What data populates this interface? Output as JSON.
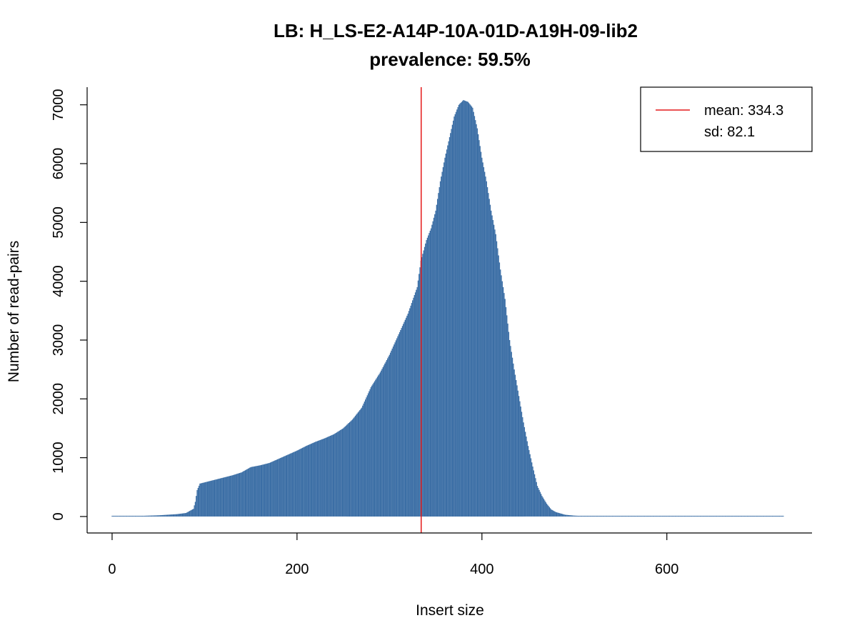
{
  "chart_data": {
    "type": "bar",
    "title": "LB: H_LS-E2-A14P-10A-01D-A19H-09-lib2",
    "subtitle": "prevalence: 59.5%",
    "xlabel": "Insert size",
    "ylabel": "Number of read-pairs",
    "xlim": [
      -27,
      757
    ],
    "ylim": [
      -280,
      7300
    ],
    "x_ticks": [
      0,
      200,
      400,
      600
    ],
    "y_ticks": [
      0,
      1000,
      2000,
      3000,
      4000,
      5000,
      6000,
      7000
    ],
    "x_tick_labels": [
      "0",
      "200",
      "400",
      "600"
    ],
    "y_tick_labels": [
      "0",
      "1000",
      "2000",
      "3000",
      "4000",
      "5000",
      "6000",
      "7000"
    ],
    "bar_color": "#3B6EA5",
    "mean_line": {
      "x": 334.3,
      "color": "#E41A1C"
    },
    "legend": {
      "position": "top-right",
      "entries": [
        "mean: 334.3",
        "sd: 82.1"
      ],
      "line_color": "#E41A1C"
    },
    "series": [
      {
        "points": [
          [
            0,
            0
          ],
          [
            10,
            0
          ],
          [
            20,
            5
          ],
          [
            30,
            10
          ],
          [
            40,
            15
          ],
          [
            50,
            20
          ],
          [
            60,
            30
          ],
          [
            70,
            40
          ],
          [
            80,
            60
          ],
          [
            88,
            130
          ],
          [
            90,
            250
          ],
          [
            92,
            450
          ],
          [
            95,
            560
          ],
          [
            100,
            580
          ],
          [
            110,
            620
          ],
          [
            120,
            660
          ],
          [
            130,
            700
          ],
          [
            140,
            750
          ],
          [
            150,
            840
          ],
          [
            160,
            870
          ],
          [
            170,
            910
          ],
          [
            180,
            980
          ],
          [
            190,
            1050
          ],
          [
            200,
            1120
          ],
          [
            210,
            1200
          ],
          [
            220,
            1270
          ],
          [
            230,
            1330
          ],
          [
            240,
            1400
          ],
          [
            250,
            1500
          ],
          [
            260,
            1650
          ],
          [
            270,
            1850
          ],
          [
            280,
            2200
          ],
          [
            290,
            2450
          ],
          [
            300,
            2750
          ],
          [
            310,
            3100
          ],
          [
            320,
            3450
          ],
          [
            330,
            3900
          ],
          [
            334,
            4350
          ],
          [
            340,
            4700
          ],
          [
            345,
            4900
          ],
          [
            350,
            5200
          ],
          [
            355,
            5700
          ],
          [
            360,
            6100
          ],
          [
            365,
            6450
          ],
          [
            370,
            6800
          ],
          [
            375,
            7000
          ],
          [
            380,
            7080
          ],
          [
            385,
            7050
          ],
          [
            390,
            6950
          ],
          [
            395,
            6600
          ],
          [
            400,
            6100
          ],
          [
            405,
            5700
          ],
          [
            410,
            5200
          ],
          [
            415,
            4800
          ],
          [
            420,
            4200
          ],
          [
            425,
            3700
          ],
          [
            430,
            3000
          ],
          [
            435,
            2500
          ],
          [
            440,
            2050
          ],
          [
            445,
            1600
          ],
          [
            450,
            1200
          ],
          [
            455,
            850
          ],
          [
            460,
            520
          ],
          [
            465,
            350
          ],
          [
            470,
            220
          ],
          [
            475,
            120
          ],
          [
            480,
            75
          ],
          [
            490,
            30
          ],
          [
            500,
            15
          ],
          [
            510,
            8
          ],
          [
            530,
            5
          ],
          [
            560,
            3
          ],
          [
            600,
            2
          ],
          [
            650,
            1
          ],
          [
            700,
            1
          ],
          [
            726,
            0
          ]
        ]
      }
    ]
  }
}
